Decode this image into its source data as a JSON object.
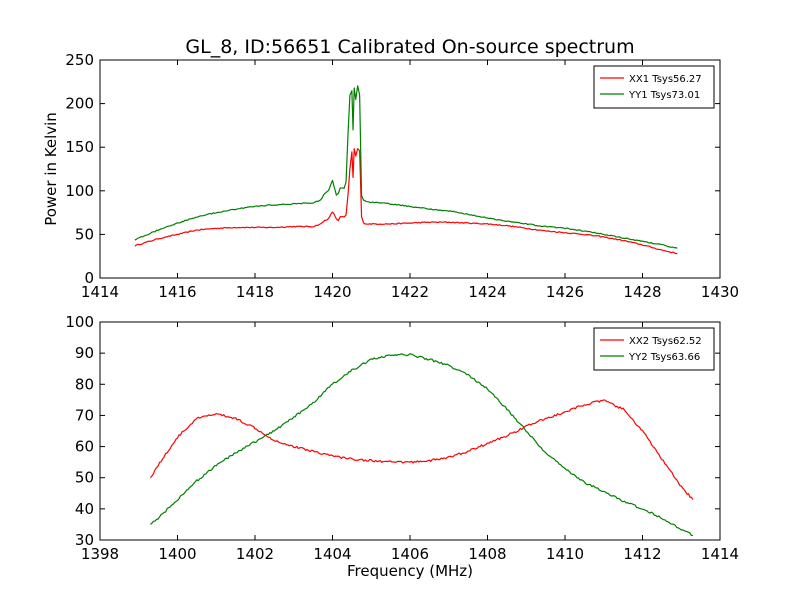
{
  "figure": {
    "title": "GL_8, ID:56651 Calibrated On-source spectrum"
  },
  "chart_data": [
    {
      "type": "line",
      "title": "GL_8, ID:56651 Calibrated On-source spectrum",
      "xlabel": "",
      "ylabel": "Power in Kelvin",
      "xlim": [
        1414,
        1430
      ],
      "ylim": [
        0,
        250
      ],
      "xticks": [
        "1414",
        "1416",
        "1418",
        "1420",
        "1422",
        "1424",
        "1426",
        "1428",
        "1430"
      ],
      "yticks": [
        "0",
        "50",
        "100",
        "150",
        "200",
        "250"
      ],
      "legend_position": "top-right",
      "grid": false,
      "series": [
        {
          "name": "XX1 Tsys56.27",
          "color": "#ff0000",
          "x": [
            1414.9,
            1415.5,
            1416.0,
            1416.5,
            1417.0,
            1417.5,
            1418.0,
            1418.5,
            1419.0,
            1419.5,
            1419.7,
            1419.8,
            1419.9,
            1420.0,
            1420.1,
            1420.15,
            1420.2,
            1420.3,
            1420.35,
            1420.4,
            1420.45,
            1420.5,
            1420.53,
            1420.56,
            1420.6,
            1420.65,
            1420.7,
            1420.75,
            1420.8,
            1420.9,
            1421.0,
            1421.5,
            1422.0,
            1422.5,
            1423.0,
            1423.5,
            1424.0,
            1424.5,
            1425.0,
            1425.5,
            1426.0,
            1426.5,
            1427.0,
            1427.5,
            1428.0,
            1428.5,
            1428.9
          ],
          "values": [
            37,
            45,
            50,
            55,
            57,
            58,
            58,
            58,
            59,
            59,
            62,
            66,
            68,
            76,
            68,
            66,
            70,
            70,
            72,
            95,
            125,
            145,
            115,
            148,
            140,
            148,
            146,
            70,
            63,
            62,
            62,
            62,
            63,
            64,
            64,
            63,
            62,
            60,
            57,
            54,
            52,
            50,
            47,
            43,
            38,
            32,
            28
          ]
        },
        {
          "name": "YY1 Tsys73.01",
          "color": "#008000",
          "x": [
            1414.9,
            1415.5,
            1416.0,
            1416.5,
            1417.0,
            1417.5,
            1418.0,
            1418.5,
            1419.0,
            1419.5,
            1419.7,
            1419.8,
            1419.9,
            1420.0,
            1420.1,
            1420.15,
            1420.2,
            1420.3,
            1420.35,
            1420.4,
            1420.45,
            1420.5,
            1420.53,
            1420.56,
            1420.6,
            1420.65,
            1420.7,
            1420.75,
            1420.8,
            1420.9,
            1421.0,
            1421.5,
            1422.0,
            1422.5,
            1423.0,
            1423.5,
            1424.0,
            1424.5,
            1425.0,
            1425.5,
            1426.0,
            1426.5,
            1427.0,
            1427.5,
            1428.0,
            1428.5,
            1428.9
          ],
          "values": [
            44,
            55,
            63,
            70,
            75,
            79,
            82,
            84,
            85,
            86,
            90,
            97,
            100,
            112,
            95,
            97,
            103,
            103,
            110,
            165,
            210,
            215,
            170,
            218,
            205,
            220,
            210,
            95,
            89,
            87,
            87,
            85,
            82,
            79,
            77,
            73,
            69,
            65,
            62,
            59,
            57,
            54,
            50,
            46,
            42,
            38,
            34
          ]
        }
      ]
    },
    {
      "type": "line",
      "title": "",
      "xlabel": "Frequency (MHz)",
      "ylabel": "",
      "xlim": [
        1398,
        1414
      ],
      "ylim": [
        30,
        100
      ],
      "xticks": [
        "1398",
        "1400",
        "1402",
        "1404",
        "1406",
        "1408",
        "1410",
        "1412",
        "1414"
      ],
      "yticks": [
        "30",
        "40",
        "50",
        "60",
        "70",
        "80",
        "90",
        "100"
      ],
      "legend_position": "top-right",
      "grid": false,
      "series": [
        {
          "name": "XX2 Tsys62.52",
          "color": "#ff0000",
          "x": [
            1399.3,
            1399.5,
            1400.0,
            1400.5,
            1401.0,
            1401.5,
            1402.0,
            1402.5,
            1403.0,
            1403.5,
            1404.0,
            1404.5,
            1405.0,
            1405.5,
            1406.0,
            1406.5,
            1407.0,
            1407.5,
            1408.0,
            1408.5,
            1409.0,
            1409.5,
            1410.0,
            1410.5,
            1411.0,
            1411.5,
            1412.0,
            1412.5,
            1413.0,
            1413.3
          ],
          "values": [
            50,
            54,
            63,
            69,
            70.5,
            69,
            66,
            62,
            60,
            58.5,
            57,
            56,
            55.5,
            55,
            55,
            55.5,
            56.5,
            58.5,
            61,
            63.5,
            66.5,
            69,
            71,
            73.5,
            74.8,
            72,
            65,
            56,
            47,
            43
          ]
        },
        {
          "name": "YY2 Tsys63.66",
          "color": "#008000",
          "x": [
            1399.3,
            1399.5,
            1400.0,
            1400.5,
            1401.0,
            1401.5,
            1402.0,
            1402.5,
            1403.0,
            1403.5,
            1404.0,
            1404.5,
            1405.0,
            1405.5,
            1406.0,
            1406.5,
            1407.0,
            1407.5,
            1408.0,
            1408.5,
            1409.0,
            1409.5,
            1410.0,
            1410.5,
            1411.0,
            1411.5,
            1412.0,
            1412.5,
            1413.0,
            1413.3
          ],
          "values": [
            35,
            37,
            43,
            49,
            54,
            58,
            61.5,
            65,
            69.5,
            74,
            80,
            84.5,
            88,
            89.5,
            89.5,
            88,
            86,
            83,
            78.5,
            72,
            65,
            58,
            53,
            48.5,
            45.5,
            42.5,
            40,
            37,
            33.5,
            31.5
          ]
        }
      ]
    }
  ]
}
